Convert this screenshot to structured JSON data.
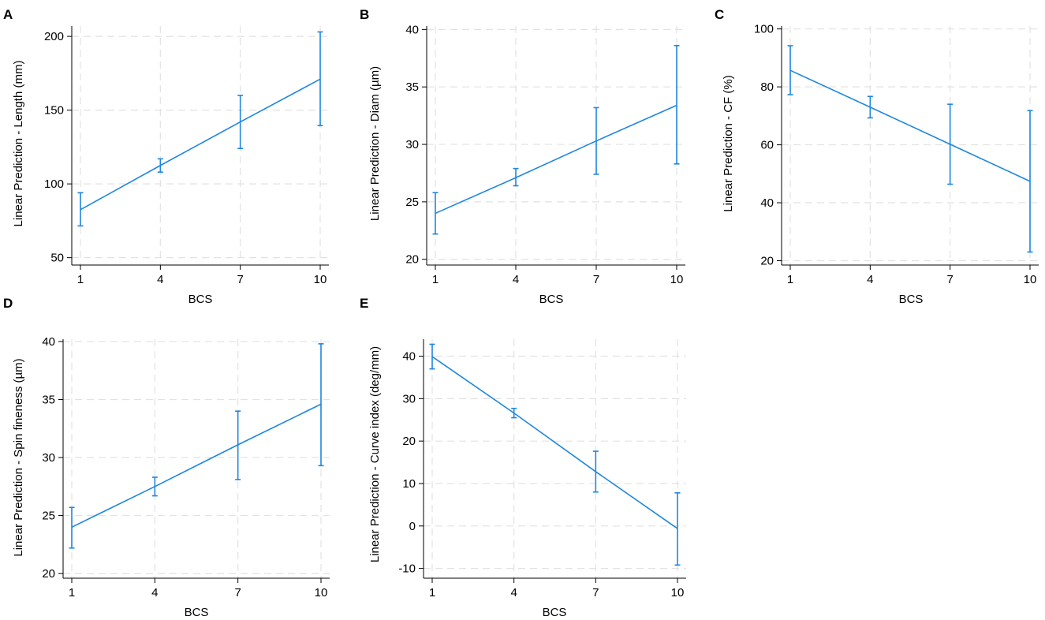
{
  "colors": {
    "series": "#1f86e0",
    "grid": "#e2e2e2",
    "axis": "#000000"
  },
  "chart_data": [
    {
      "panel": "A",
      "type": "line",
      "title": "",
      "xlabel": "BCS",
      "ylabel": "Linear Prediction - Length (mm)",
      "x": [
        1,
        4,
        7,
        10
      ],
      "xticks": [
        1,
        4,
        7,
        10
      ],
      "xtick_labels": [
        "1",
        "4",
        "7",
        "10"
      ],
      "yticks": [
        50,
        100,
        150,
        200
      ],
      "ytick_labels": [
        "50",
        "100",
        "150",
        "200"
      ],
      "xlim": [
        1,
        10
      ],
      "ylim": [
        45,
        207
      ],
      "grid": true,
      "series": [
        {
          "name": "Length",
          "values": [
            82.5,
            112.5,
            142,
            171
          ],
          "ci_low": [
            71.5,
            108,
            124,
            139.5
          ],
          "ci_high": [
            94,
            117,
            160,
            203
          ]
        }
      ]
    },
    {
      "panel": "B",
      "type": "line",
      "title": "",
      "xlabel": "BCS",
      "ylabel": "Linear Prediction - Diam (µm)",
      "x": [
        1,
        4,
        7,
        10
      ],
      "xticks": [
        1,
        4,
        7,
        10
      ],
      "xtick_labels": [
        "1",
        "4",
        "7",
        "10"
      ],
      "yticks": [
        20,
        25,
        30,
        35,
        40
      ],
      "ytick_labels": [
        "20",
        "25",
        "30",
        "35",
        "40"
      ],
      "xlim": [
        1,
        10
      ],
      "ylim": [
        19.5,
        40.3
      ],
      "grid": true,
      "series": [
        {
          "name": "Diam",
          "values": [
            24,
            27.1,
            30.3,
            33.4
          ],
          "ci_low": [
            22.2,
            26.4,
            27.4,
            28.3
          ],
          "ci_high": [
            25.8,
            27.9,
            33.2,
            38.6
          ]
        }
      ]
    },
    {
      "panel": "C",
      "type": "line",
      "title": "",
      "xlabel": "BCS",
      "ylabel": "Linear Prediction - CF (%)",
      "x": [
        1,
        4,
        7,
        10
      ],
      "xticks": [
        1,
        4,
        7,
        10
      ],
      "xtick_labels": [
        "1",
        "4",
        "7",
        "10"
      ],
      "yticks": [
        20,
        40,
        60,
        80,
        100
      ],
      "ytick_labels": [
        "20",
        "40",
        "60",
        "80",
        "100"
      ],
      "xlim": [
        1,
        10
      ],
      "ylim": [
        18.5,
        101
      ],
      "grid": true,
      "series": [
        {
          "name": "CF",
          "values": [
            85.7,
            73,
            60.2,
            47.4
          ],
          "ci_low": [
            77.3,
            69.3,
            46.4,
            23
          ],
          "ci_high": [
            94.2,
            76.7,
            74,
            71.8
          ]
        }
      ]
    },
    {
      "panel": "D",
      "type": "line",
      "title": "",
      "xlabel": "BCS",
      "ylabel": "Linear Prediction - Spin fineness (µm)",
      "x": [
        1,
        4,
        7,
        10
      ],
      "xticks": [
        1,
        4,
        7,
        10
      ],
      "xtick_labels": [
        "1",
        "4",
        "7",
        "10"
      ],
      "yticks": [
        20,
        25,
        30,
        35,
        40
      ],
      "ytick_labels": [
        "20",
        "25",
        "30",
        "35",
        "40"
      ],
      "xlim": [
        1,
        10
      ],
      "ylim": [
        19.6,
        40.2
      ],
      "grid": true,
      "series": [
        {
          "name": "Spin fineness",
          "values": [
            24,
            27.5,
            31.1,
            34.6
          ],
          "ci_low": [
            22.2,
            26.7,
            28.1,
            29.3
          ],
          "ci_high": [
            25.7,
            28.3,
            34,
            39.8
          ]
        }
      ]
    },
    {
      "panel": "E",
      "type": "line",
      "title": "",
      "xlabel": "BCS",
      "ylabel": "Linear Prediction - Curve index (deg/mm)",
      "x": [
        1,
        4,
        7,
        10
      ],
      "xticks": [
        1,
        4,
        7,
        10
      ],
      "xtick_labels": [
        "1",
        "4",
        "7",
        "10"
      ],
      "yticks": [
        -10,
        0,
        10,
        20,
        30,
        40
      ],
      "ytick_labels": [
        "-10",
        "0",
        "10",
        "20",
        "30",
        "40"
      ],
      "xlim": [
        1,
        10
      ],
      "ylim": [
        -12.3,
        44
      ],
      "grid": true,
      "series": [
        {
          "name": "Curve index",
          "values": [
            39.9,
            26.6,
            12.8,
            -0.6
          ],
          "ci_low": [
            37,
            25.5,
            8,
            -9.2
          ],
          "ci_high": [
            42.8,
            27.7,
            17.6,
            7.8
          ]
        }
      ]
    }
  ]
}
